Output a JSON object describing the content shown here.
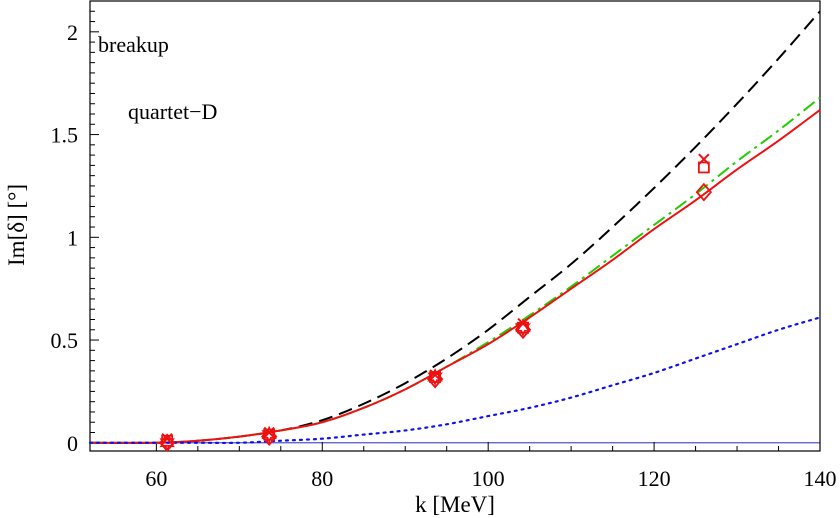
{
  "chart_data": {
    "type": "line",
    "xlabel": "k [MeV]",
    "ylabel": "Im[δ] [°]",
    "xlim": [
      52,
      140
    ],
    "ylim": [
      -0.04,
      2.15
    ],
    "xticks": [
      60,
      80,
      100,
      120,
      140
    ],
    "yticks": [
      0,
      0.5,
      1,
      1.5,
      2
    ],
    "ytick_labels": [
      "0",
      "0.5",
      "1",
      "1.5",
      "2"
    ],
    "annotations": [
      "breakup",
      "quartet−D"
    ],
    "zero_line": true,
    "series": [
      {
        "name": "black-dashed",
        "style": "dashed",
        "color": "#000000",
        "x": [
          52,
          60,
          65,
          70,
          75,
          80,
          85,
          90,
          95,
          100,
          105,
          110,
          115,
          120,
          125,
          130,
          135,
          140
        ],
        "y": [
          0,
          0.0,
          0.01,
          0.03,
          0.06,
          0.11,
          0.19,
          0.29,
          0.41,
          0.55,
          0.71,
          0.87,
          1.05,
          1.24,
          1.44,
          1.65,
          1.87,
          2.1
        ]
      },
      {
        "name": "green-dash-dot",
        "style": "dashdot",
        "color": "#22cc00",
        "x": [
          52,
          60,
          65,
          70,
          75,
          80,
          85,
          90,
          95,
          100,
          105,
          110,
          115,
          120,
          125,
          130,
          135,
          140
        ],
        "y": [
          0,
          0.0,
          0.01,
          0.03,
          0.06,
          0.1,
          0.17,
          0.26,
          0.37,
          0.49,
          0.62,
          0.76,
          0.91,
          1.06,
          1.21,
          1.37,
          1.52,
          1.68
        ]
      },
      {
        "name": "red-solid",
        "style": "solid",
        "color": "#ee1111",
        "x": [
          52,
          60,
          65,
          70,
          75,
          80,
          85,
          90,
          95,
          100,
          105,
          110,
          115,
          120,
          125,
          130,
          135,
          140
        ],
        "y": [
          0,
          0.0,
          0.01,
          0.03,
          0.06,
          0.1,
          0.17,
          0.26,
          0.37,
          0.48,
          0.61,
          0.75,
          0.89,
          1.04,
          1.18,
          1.33,
          1.47,
          1.62
        ]
      },
      {
        "name": "blue-dotted",
        "style": "dotted",
        "color": "#1111ee",
        "x": [
          52,
          60,
          65,
          70,
          75,
          80,
          85,
          90,
          95,
          100,
          105,
          110,
          115,
          120,
          125,
          130,
          135,
          140
        ],
        "y": [
          0,
          0.0,
          0.0,
          0.0,
          0.01,
          0.02,
          0.04,
          0.06,
          0.09,
          0.13,
          0.17,
          0.22,
          0.28,
          0.34,
          0.41,
          0.48,
          0.55,
          0.61
        ]
      }
    ],
    "markers": [
      {
        "symbol": "diamond",
        "x": 61.3,
        "y": 0.0
      },
      {
        "symbol": "diamond",
        "x": 73.6,
        "y": 0.03
      },
      {
        "symbol": "diamond",
        "x": 93.6,
        "y": 0.31
      },
      {
        "symbol": "diamond",
        "x": 104.2,
        "y": 0.55
      },
      {
        "symbol": "diamond",
        "x": 126.0,
        "y": 1.22
      },
      {
        "symbol": "square",
        "x": 61.3,
        "y": 0.01
      },
      {
        "symbol": "square",
        "x": 73.6,
        "y": 0.04
      },
      {
        "symbol": "square",
        "x": 93.6,
        "y": 0.32
      },
      {
        "symbol": "square",
        "x": 104.2,
        "y": 0.56
      },
      {
        "symbol": "square",
        "x": 126.0,
        "y": 1.34
      },
      {
        "symbol": "cross",
        "x": 61.3,
        "y": 0.02
      },
      {
        "symbol": "cross",
        "x": 73.6,
        "y": 0.05
      },
      {
        "symbol": "cross",
        "x": 93.6,
        "y": 0.33
      },
      {
        "symbol": "cross",
        "x": 104.2,
        "y": 0.58
      },
      {
        "symbol": "cross",
        "x": 126.0,
        "y": 1.38
      },
      {
        "symbol": "star",
        "x": 61.3,
        "y": 0.0
      },
      {
        "symbol": "star",
        "x": 73.6,
        "y": 0.04
      },
      {
        "symbol": "star",
        "x": 93.6,
        "y": 0.32
      },
      {
        "symbol": "star",
        "x": 104.2,
        "y": 0.56
      }
    ],
    "marker_color": "#ee1111",
    "axis_color": "#000000",
    "zero_line_color": "#5555cc"
  }
}
